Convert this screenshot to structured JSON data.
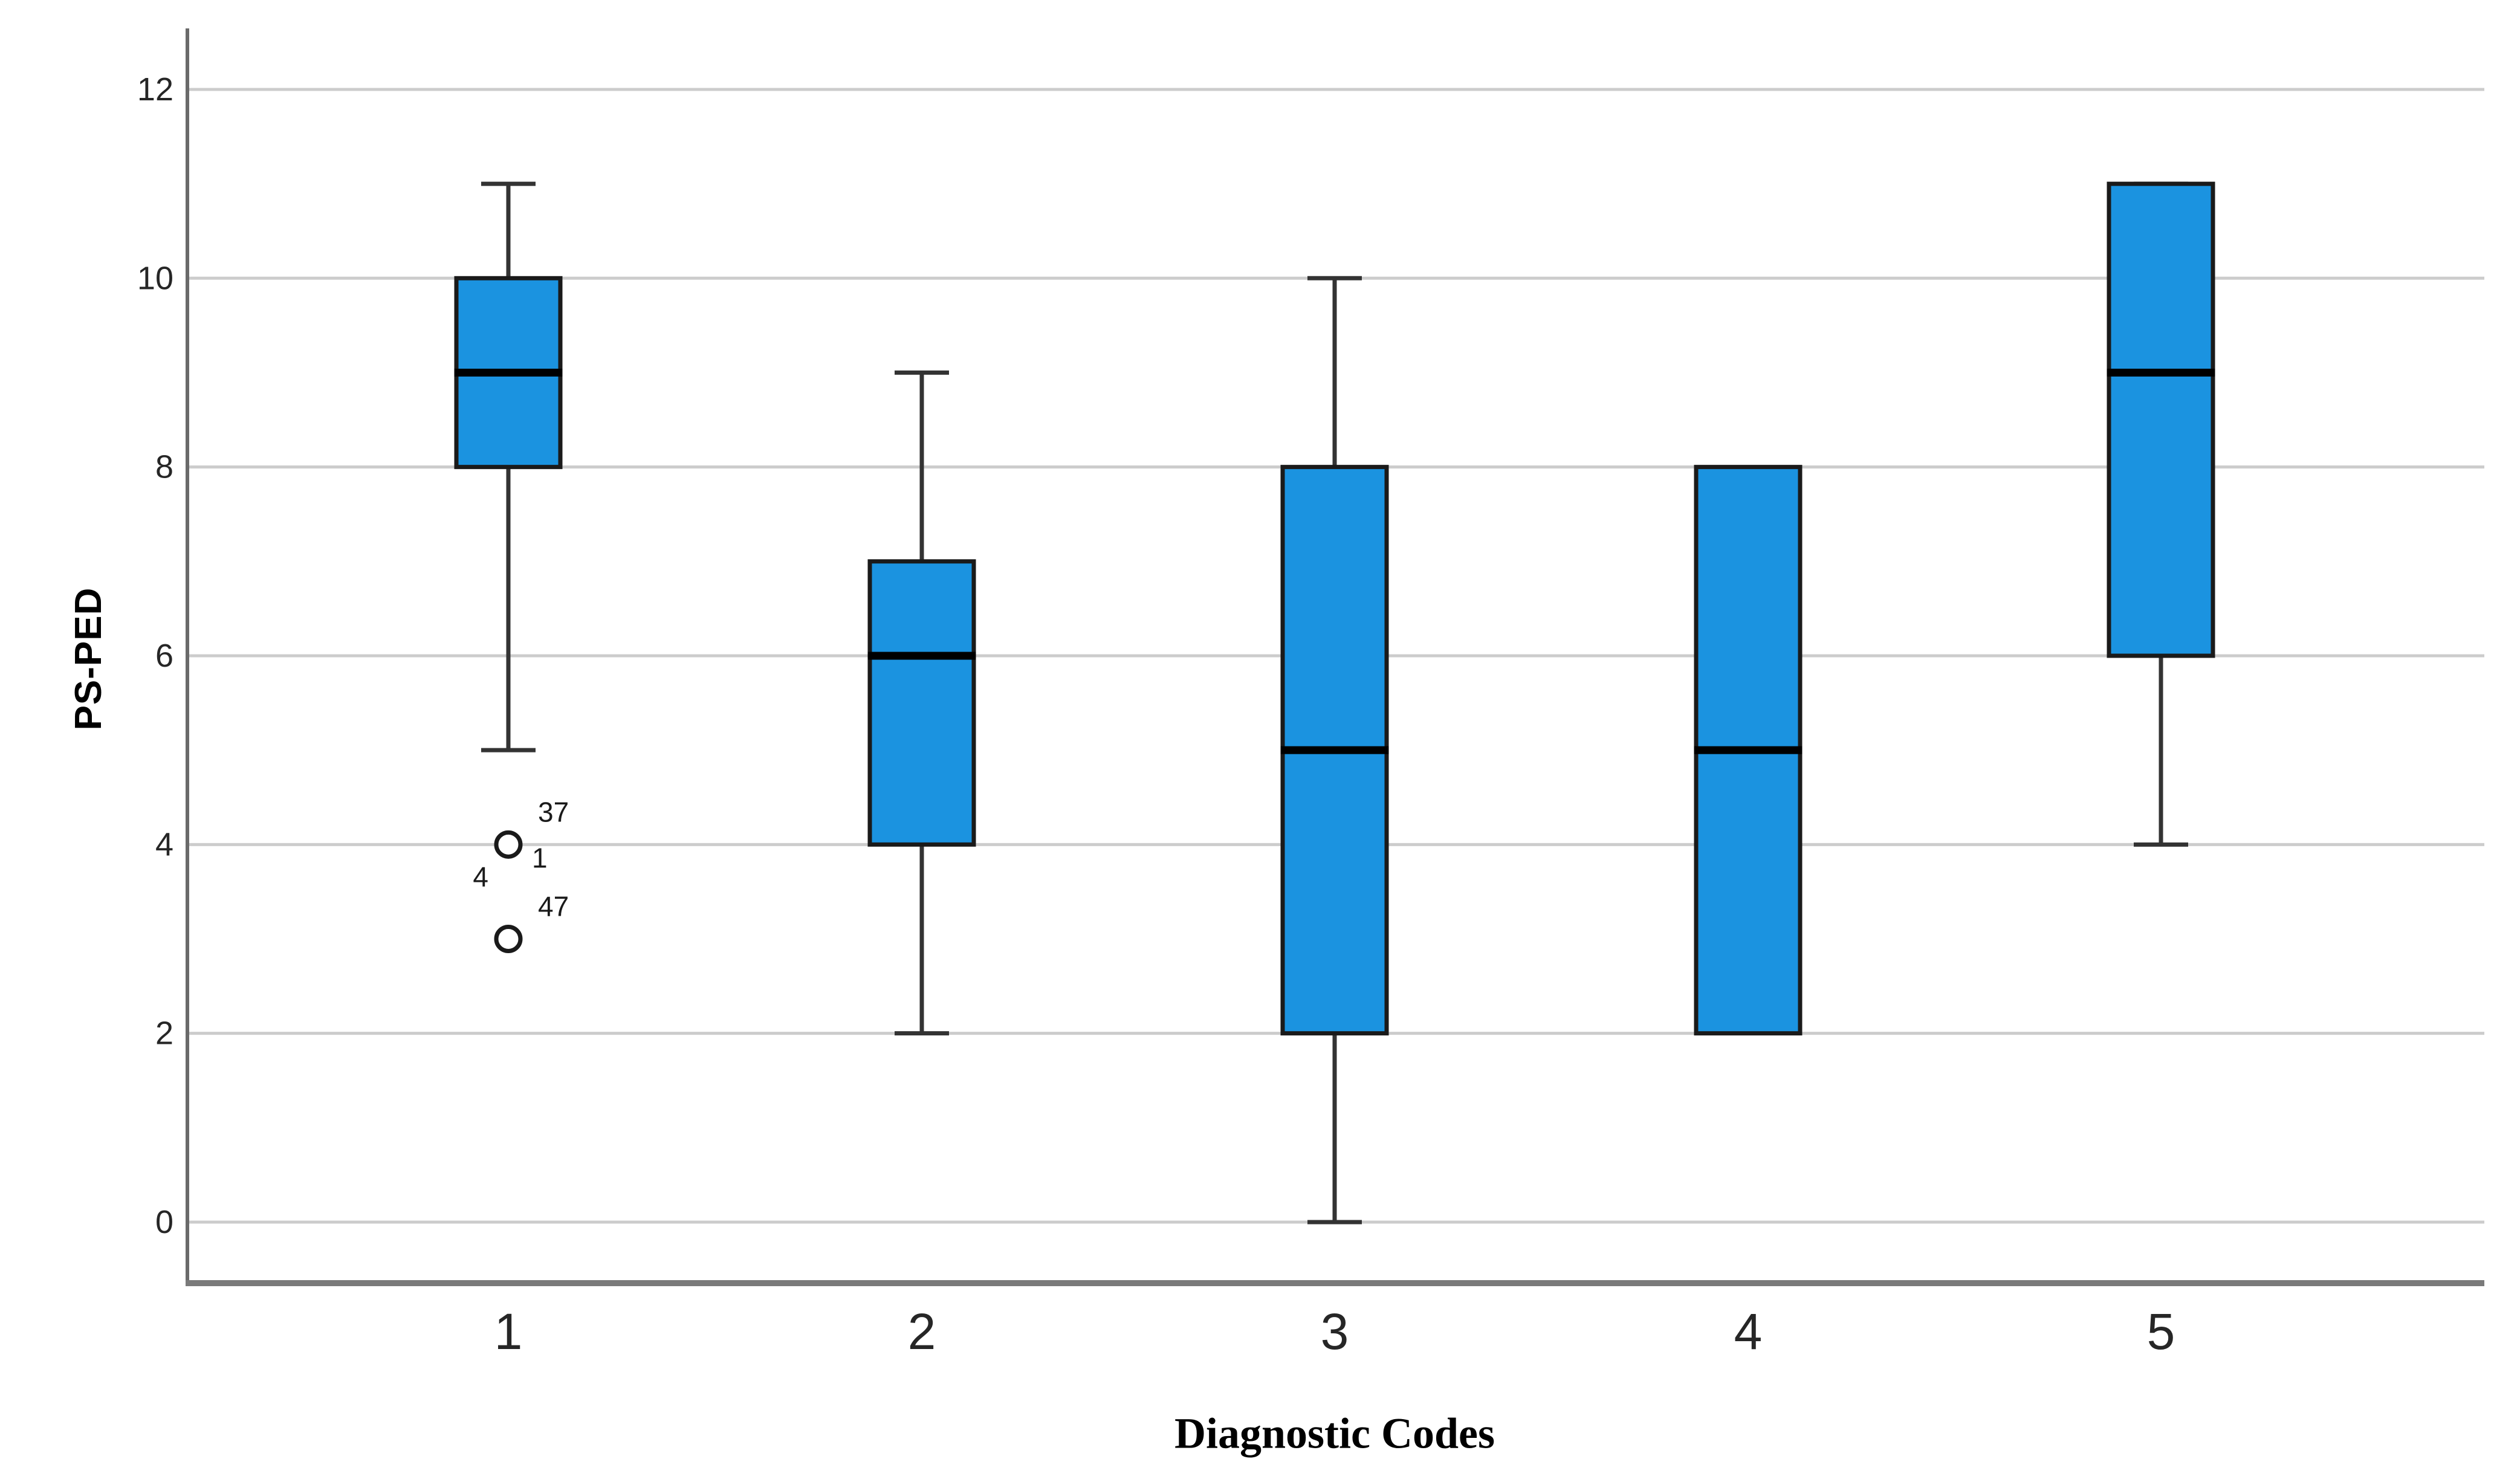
{
  "figure": {
    "background": "#ffffff"
  },
  "chart_data": {
    "type": "boxplot",
    "title": "",
    "xlabel": "Diagnostic Codes",
    "ylabel": "PS-PED",
    "categories": [
      "1",
      "2",
      "3",
      "4",
      "5"
    ],
    "y_ticks": [
      12,
      10,
      8,
      6,
      4,
      2,
      0
    ],
    "ylim": [
      -0.6,
      12.6
    ],
    "grid": "horizontal-light",
    "legend": "none",
    "series": [
      {
        "category": "1",
        "q1": 8,
        "median": 9,
        "q3": 10,
        "whisker_low": 5,
        "whisker_high": 11,
        "outliers": [
          {
            "value": 4,
            "case_labels": [
              {
                "text": "37",
                "pos": "above-right"
              },
              {
                "text": "1",
                "pos": "below-right"
              },
              {
                "text": "4",
                "pos": "left-below"
              }
            ]
          },
          {
            "value": 3,
            "case_labels": [
              {
                "text": "47",
                "pos": "above-right"
              }
            ]
          }
        ]
      },
      {
        "category": "2",
        "q1": 4,
        "median": 6,
        "q3": 7,
        "whisker_low": 2,
        "whisker_high": 9,
        "outliers": []
      },
      {
        "category": "3",
        "q1": 2,
        "median": 5,
        "q3": 8,
        "whisker_low": 0,
        "whisker_high": 10,
        "outliers": []
      },
      {
        "category": "4",
        "q1": 2,
        "median": 5,
        "q3": 8,
        "whisker_low": null,
        "whisker_high": null,
        "outliers": []
      },
      {
        "category": "5",
        "q1": 6,
        "median": 9,
        "q3": 11,
        "whisker_low": 4,
        "whisker_high": 11,
        "outliers": []
      }
    ],
    "colors": {
      "box_fill": "#1b93e0",
      "box_border": "#1a1a1a",
      "median": "#000000",
      "whisker": "#333333",
      "gridline": "#cccccc",
      "y_axis_line": "#6a6a6a",
      "x_axis_line": "#7a7a7a",
      "tick_text": "#262626",
      "outlier_text": "#1a1a1a",
      "title_text": "#000000"
    }
  }
}
